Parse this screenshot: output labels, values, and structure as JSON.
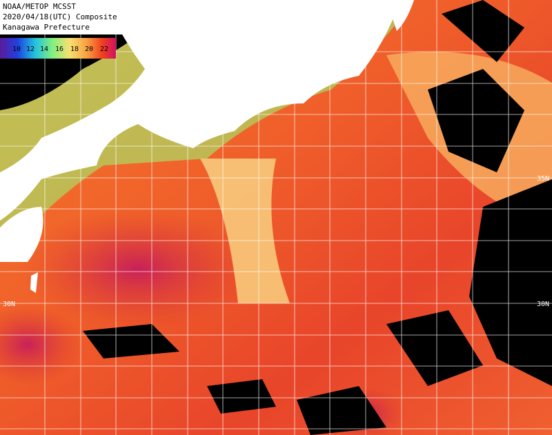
{
  "header": {
    "lines": [
      "NOAA/METOP MCSST",
      "2020/04/18(UTC) Composite",
      "Kanagawa Prefecture"
    ]
  },
  "colorbar": {
    "labels": [
      "10",
      "12",
      "14",
      "16",
      "18",
      "20",
      "22"
    ]
  },
  "grid_labels": {
    "left": [
      "30N"
    ],
    "right": [
      "35N",
      "30N"
    ]
  }
}
